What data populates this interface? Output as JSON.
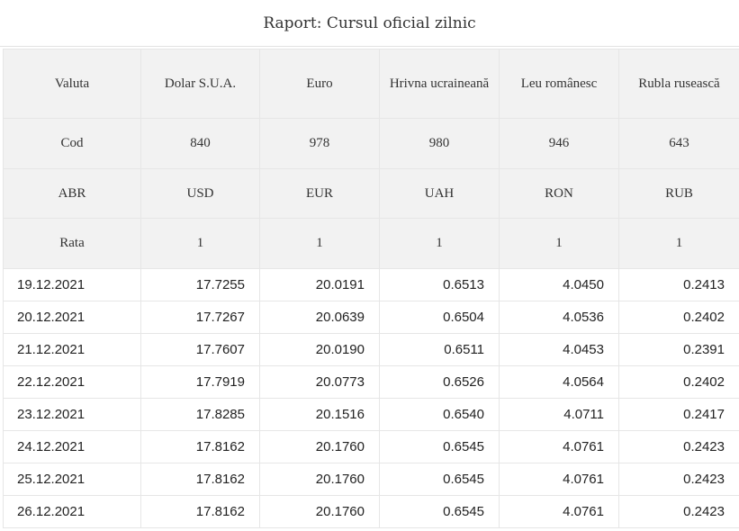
{
  "report": {
    "title": "Raport: Cursul oficial zilnic"
  },
  "header_rows": [
    {
      "cells": [
        "Valuta",
        "Dolar S.U.A.",
        "Euro",
        "Hrivna ucraineană",
        "Leu românesc",
        "Rubla rusească"
      ]
    },
    {
      "cells": [
        "Cod",
        "840",
        "978",
        "980",
        "946",
        "643"
      ]
    },
    {
      "cells": [
        "ABR",
        "USD",
        "EUR",
        "UAH",
        "RON",
        "RUB"
      ]
    },
    {
      "cells": [
        "Rata",
        "1",
        "1",
        "1",
        "1",
        "1"
      ]
    }
  ],
  "rows": [
    {
      "cells": [
        "19.12.2021",
        "17.7255",
        "20.0191",
        "0.6513",
        "4.0450",
        "0.2413"
      ]
    },
    {
      "cells": [
        "20.12.2021",
        "17.7267",
        "20.0639",
        "0.6504",
        "4.0536",
        "0.2402"
      ]
    },
    {
      "cells": [
        "21.12.2021",
        "17.7607",
        "20.0190",
        "0.6511",
        "4.0453",
        "0.2391"
      ]
    },
    {
      "cells": [
        "22.12.2021",
        "17.7919",
        "20.0773",
        "0.6526",
        "4.0564",
        "0.2402"
      ]
    },
    {
      "cells": [
        "23.12.2021",
        "17.8285",
        "20.1516",
        "0.6540",
        "4.0711",
        "0.2417"
      ]
    },
    {
      "cells": [
        "24.12.2021",
        "17.8162",
        "20.1760",
        "0.6545",
        "4.0761",
        "0.2423"
      ]
    },
    {
      "cells": [
        "25.12.2021",
        "17.8162",
        "20.1760",
        "0.6545",
        "4.0761",
        "0.2423"
      ]
    },
    {
      "cells": [
        "26.12.2021",
        "17.8162",
        "20.1760",
        "0.6545",
        "4.0761",
        "0.2423"
      ]
    }
  ]
}
